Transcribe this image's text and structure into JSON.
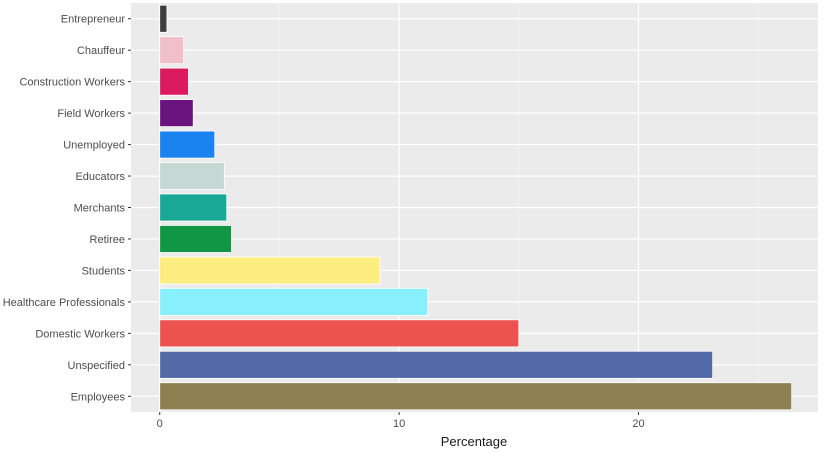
{
  "chart_data": {
    "type": "bar",
    "orientation": "horizontal",
    "title": "",
    "xlabel": "Percentage",
    "ylabel": "",
    "xlim": [
      -1.2,
      27.5
    ],
    "xticks": [
      0,
      10,
      20
    ],
    "grid": true,
    "legend": "none",
    "panel_background": "#ebebeb",
    "categories": [
      "Employees",
      "Unspecified",
      "Domestic Workers",
      "Healthcare Professionals",
      "Students",
      "Retiree",
      "Merchants",
      "Educators",
      "Unemployed",
      "Field Workers",
      "Construction Workers",
      "Chauffeur",
      "Entrepreneur"
    ],
    "values": [
      26.4,
      23.1,
      15.0,
      11.2,
      9.2,
      3.0,
      2.8,
      2.7,
      2.3,
      1.4,
      1.2,
      1.0,
      0.3
    ],
    "colors": [
      "#8c8050",
      "#5469a8",
      "#ec524e",
      "#88f0fc",
      "#fced80",
      "#119646",
      "#19a895",
      "#c6d8d4",
      "#1a83f0",
      "#6a137f",
      "#db1b5d",
      "#f1bfca",
      "#3e3e3e"
    ]
  }
}
